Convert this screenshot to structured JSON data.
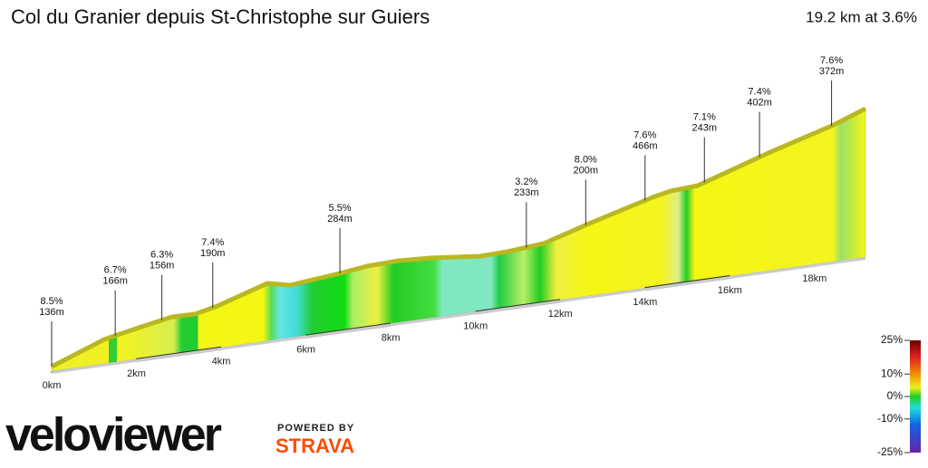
{
  "header": {
    "title": "Col du Granier depuis St-Christophe sur Guiers",
    "summary": "19.2 km at 3.6%"
  },
  "chart_data": {
    "type": "profile",
    "xlim": [
      0,
      19.2
    ],
    "xticks": [
      {
        "value": 0,
        "label": "0km"
      },
      {
        "value": 2,
        "label": "2km"
      },
      {
        "value": 4,
        "label": "4km"
      },
      {
        "value": 6,
        "label": "6km"
      },
      {
        "value": 8,
        "label": "8km"
      },
      {
        "value": 10,
        "label": "10km"
      },
      {
        "value": 12,
        "label": "12km"
      },
      {
        "value": 14,
        "label": "14km"
      },
      {
        "value": 16,
        "label": "16km"
      },
      {
        "value": 18,
        "label": "18km"
      }
    ],
    "annotations": [
      {
        "x": 0,
        "gradient": "8.5%",
        "length": "136m"
      },
      {
        "x": 1.5,
        "gradient": "6.7%",
        "length": "166m"
      },
      {
        "x": 2.6,
        "gradient": "6.3%",
        "length": "156m"
      },
      {
        "x": 3.8,
        "gradient": "7.4%",
        "length": "190m"
      },
      {
        "x": 6.8,
        "gradient": "5.5%",
        "length": "284m"
      },
      {
        "x": 11.2,
        "gradient": "3.2%",
        "length": "233m"
      },
      {
        "x": 12.6,
        "gradient": "8.0%",
        "length": "200m"
      },
      {
        "x": 14.0,
        "gradient": "7.6%",
        "length": "466m"
      },
      {
        "x": 15.4,
        "gradient": "7.1%",
        "length": "243m"
      },
      {
        "x": 16.7,
        "gradient": "7.4%",
        "length": "402m"
      },
      {
        "x": 18.4,
        "gradient": "7.6%",
        "length": "372m"
      }
    ],
    "color_scale": {
      "lim": [
        -25,
        25
      ],
      "ticks": [
        {
          "value": 25,
          "label": "25%"
        },
        {
          "value": 10,
          "label": "10%"
        },
        {
          "value": 0,
          "label": "0%"
        },
        {
          "value": -10,
          "label": "-10%"
        },
        {
          "value": -25,
          "label": "-25%"
        }
      ]
    }
  },
  "branding": {
    "logo": "veloviewer",
    "powered": "POWERED BY",
    "partner": "STRAVA"
  }
}
